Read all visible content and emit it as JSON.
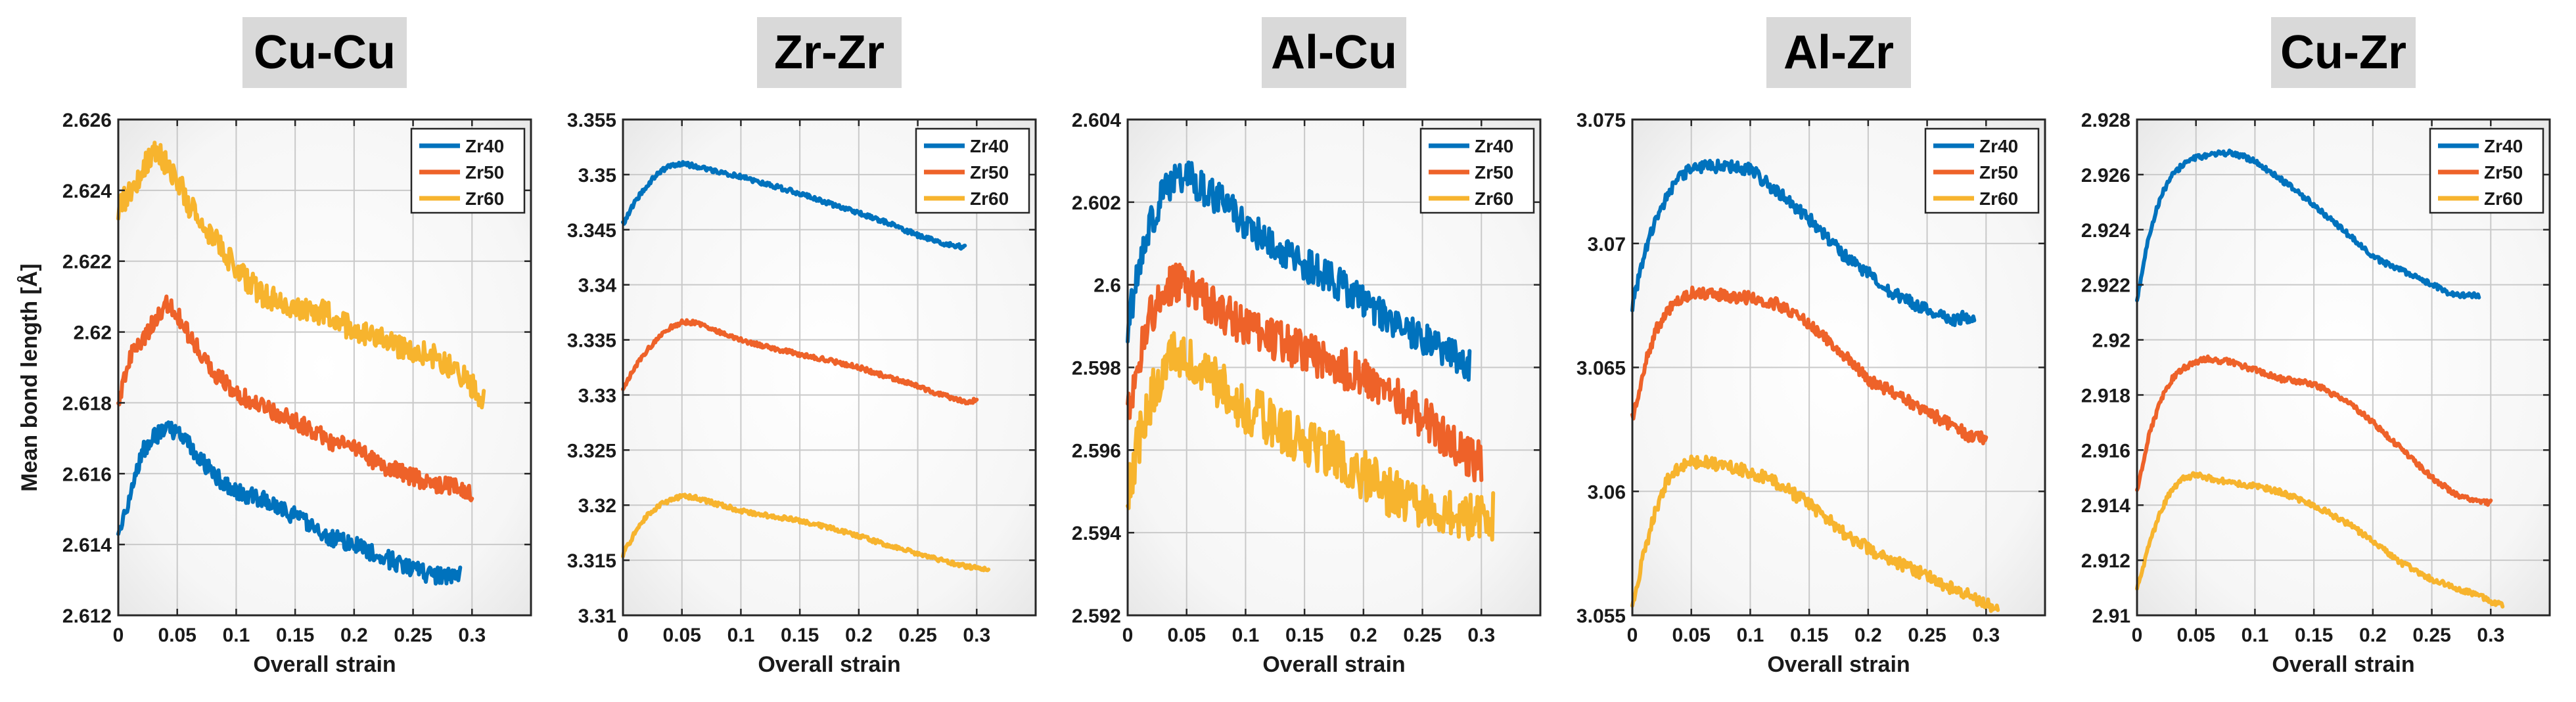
{
  "figure": {
    "ylabel": "Mean bond length  [Å]",
    "xlabel": "Overall strain",
    "legend_location": "top-right",
    "grid": true,
    "colors": {
      "Zr40": "#0072BD",
      "Zr50": "#EE6229",
      "Zr60": "#F7B42E",
      "title_box": "#d9d9d9"
    }
  },
  "chart_data": [
    {
      "type": "line",
      "title": "Cu-Cu",
      "xlabel": "Overall strain",
      "ylabel": "Mean bond length  [Å]",
      "xlim": [
        0,
        0.35
      ],
      "ylim": [
        2.612,
        2.626
      ],
      "xticks": [
        0,
        0.05,
        0.1,
        0.15,
        0.2,
        0.25,
        0.3
      ],
      "xtick_labels": [
        "0",
        "0.05",
        "0.1",
        "0.15",
        "0.2",
        "0.25",
        "0.3"
      ],
      "yticks": [
        2.612,
        2.614,
        2.616,
        2.618,
        2.62,
        2.622,
        2.624,
        2.626
      ],
      "ytick_labels": [
        "2.612",
        "2.614",
        "2.616",
        "2.618",
        "2.62",
        "2.622",
        "2.624",
        "2.626"
      ],
      "series": [
        {
          "name": "Zr40",
          "noise": 0.00025,
          "x": [
            0,
            0.01,
            0.02,
            0.03,
            0.04,
            0.05,
            0.06,
            0.08,
            0.1,
            0.12,
            0.15,
            0.18,
            0.2,
            0.22,
            0.25,
            0.27,
            0.29
          ],
          "y": [
            2.6141,
            2.6155,
            2.6166,
            2.617,
            2.6173,
            2.6172,
            2.6168,
            2.616,
            2.6155,
            2.6153,
            2.6148,
            2.6142,
            2.614,
            2.6137,
            2.6133,
            2.6131,
            2.6132
          ]
        },
        {
          "name": "Zr50",
          "noise": 0.00025,
          "x": [
            0,
            0.01,
            0.02,
            0.03,
            0.04,
            0.05,
            0.06,
            0.08,
            0.1,
            0.12,
            0.15,
            0.18,
            0.2,
            0.22,
            0.25,
            0.27,
            0.29,
            0.3
          ],
          "y": [
            2.618,
            2.6193,
            2.6197,
            2.6203,
            2.6208,
            2.6205,
            2.6199,
            2.6189,
            2.6183,
            2.6179,
            2.6175,
            2.6169,
            2.6167,
            2.6163,
            2.6159,
            2.6157,
            2.6156,
            2.6154
          ]
        },
        {
          "name": "Zr60",
          "noise": 0.00035,
          "x": [
            0,
            0.01,
            0.02,
            0.03,
            0.04,
            0.05,
            0.06,
            0.08,
            0.1,
            0.12,
            0.15,
            0.18,
            0.2,
            0.22,
            0.25,
            0.27,
            0.29,
            0.3,
            0.31
          ],
          "y": [
            2.6235,
            2.624,
            2.6245,
            2.6252,
            2.6248,
            2.6243,
            2.6236,
            2.6227,
            2.6218,
            2.6211,
            2.6207,
            2.6205,
            2.62,
            2.6198,
            2.6195,
            2.6193,
            2.6188,
            2.6185,
            2.6181
          ]
        }
      ]
    },
    {
      "type": "line",
      "title": "Zr-Zr",
      "xlabel": "Overall strain",
      "ylabel": "",
      "xlim": [
        0,
        0.35
      ],
      "ylim": [
        3.31,
        3.355
      ],
      "xticks": [
        0,
        0.05,
        0.1,
        0.15,
        0.2,
        0.25,
        0.3
      ],
      "xtick_labels": [
        "0",
        "0.05",
        "0.1",
        "0.15",
        "0.2",
        "0.25",
        "0.3"
      ],
      "yticks": [
        3.31,
        3.315,
        3.32,
        3.325,
        3.33,
        3.335,
        3.34,
        3.345,
        3.35,
        3.355
      ],
      "ytick_labels": [
        "3.31",
        "3.315",
        "3.32",
        "3.325",
        "3.33",
        "3.335",
        "3.34",
        "3.345",
        "3.35",
        "3.355"
      ],
      "series": [
        {
          "name": "Zr40",
          "noise": 0.0002,
          "x": [
            0,
            0.01,
            0.02,
            0.03,
            0.04,
            0.05,
            0.06,
            0.08,
            0.1,
            0.12,
            0.15,
            0.18,
            0.2,
            0.22,
            0.25,
            0.27,
            0.29
          ],
          "y": [
            3.3455,
            3.3475,
            3.349,
            3.3502,
            3.3508,
            3.351,
            3.3508,
            3.3503,
            3.3498,
            3.3492,
            3.3483,
            3.3472,
            3.3465,
            3.3458,
            3.3445,
            3.3438,
            3.3434
          ]
        },
        {
          "name": "Zr50",
          "noise": 0.0002,
          "x": [
            0,
            0.01,
            0.02,
            0.03,
            0.04,
            0.05,
            0.06,
            0.08,
            0.1,
            0.12,
            0.15,
            0.18,
            0.2,
            0.22,
            0.25,
            0.27,
            0.29,
            0.3
          ],
          "y": [
            3.3305,
            3.3325,
            3.334,
            3.3352,
            3.3361,
            3.3366,
            3.3366,
            3.3358,
            3.335,
            3.3344,
            3.3337,
            3.333,
            3.3325,
            3.3318,
            3.3308,
            3.33,
            3.3294,
            3.3295
          ]
        },
        {
          "name": "Zr60",
          "noise": 0.0002,
          "x": [
            0,
            0.01,
            0.02,
            0.03,
            0.04,
            0.05,
            0.06,
            0.08,
            0.1,
            0.12,
            0.15,
            0.18,
            0.2,
            0.22,
            0.25,
            0.27,
            0.29,
            0.3,
            0.31
          ],
          "y": [
            3.3155,
            3.3175,
            3.319,
            3.3199,
            3.3205,
            3.3208,
            3.3207,
            3.3201,
            3.3195,
            3.3191,
            3.3186,
            3.3178,
            3.3172,
            3.3165,
            3.3156,
            3.315,
            3.3145,
            3.3143,
            3.3142
          ]
        }
      ]
    },
    {
      "type": "line",
      "title": "Al-Cu",
      "xlabel": "Overall strain",
      "ylabel": "",
      "xlim": [
        0,
        0.35
      ],
      "ylim": [
        2.592,
        2.604
      ],
      "xticks": [
        0,
        0.05,
        0.1,
        0.15,
        0.2,
        0.25,
        0.3
      ],
      "xtick_labels": [
        "0",
        "0.05",
        "0.1",
        "0.15",
        "0.2",
        "0.25",
        "0.3"
      ],
      "yticks": [
        2.592,
        2.594,
        2.596,
        2.598,
        2.6,
        2.602,
        2.604
      ],
      "ytick_labels": [
        "2.592",
        "2.594",
        "2.596",
        "2.598",
        "2.6",
        "2.602",
        "2.604"
      ],
      "series": [
        {
          "name": "Zr40",
          "noise": 0.0004,
          "x": [
            0,
            0.01,
            0.02,
            0.03,
            0.04,
            0.05,
            0.06,
            0.08,
            0.1,
            0.12,
            0.15,
            0.18,
            0.2,
            0.22,
            0.25,
            0.27,
            0.29
          ],
          "y": [
            2.599,
            2.6005,
            2.6015,
            2.6022,
            2.6025,
            2.6027,
            2.6024,
            2.602,
            2.6015,
            2.601,
            2.6005,
            2.6,
            2.5996,
            2.5992,
            2.5987,
            2.5984,
            2.598
          ]
        },
        {
          "name": "Zr50",
          "noise": 0.0005,
          "x": [
            0,
            0.01,
            0.02,
            0.03,
            0.04,
            0.05,
            0.06,
            0.08,
            0.1,
            0.12,
            0.15,
            0.18,
            0.2,
            0.22,
            0.25,
            0.27,
            0.29,
            0.3
          ],
          "y": [
            2.597,
            2.5983,
            2.5993,
            2.5998,
            2.6,
            2.6,
            2.5998,
            2.5993,
            2.599,
            2.5987,
            2.5984,
            2.598,
            2.5978,
            2.5974,
            2.5968,
            2.5963,
            2.5958,
            2.5957
          ]
        },
        {
          "name": "Zr60",
          "noise": 0.0006,
          "x": [
            0,
            0.01,
            0.02,
            0.03,
            0.04,
            0.05,
            0.06,
            0.08,
            0.1,
            0.12,
            0.15,
            0.18,
            0.2,
            0.22,
            0.25,
            0.27,
            0.29,
            0.3,
            0.31
          ],
          "y": [
            2.595,
            2.5963,
            2.5973,
            2.598,
            2.5983,
            2.5983,
            2.598,
            2.5975,
            2.597,
            2.5967,
            2.5962,
            2.5958,
            2.5954,
            2.595,
            2.5946,
            2.5944,
            2.5944,
            2.5945,
            2.5944
          ]
        }
      ]
    },
    {
      "type": "line",
      "title": "Al-Zr",
      "xlabel": "Overall strain",
      "ylabel": "",
      "xlim": [
        0,
        0.35
      ],
      "ylim": [
        3.055,
        3.075
      ],
      "xticks": [
        0,
        0.05,
        0.1,
        0.15,
        0.2,
        0.25,
        0.3
      ],
      "xtick_labels": [
        "0",
        "0.05",
        "0.1",
        "0.15",
        "0.2",
        "0.25",
        "0.3"
      ],
      "yticks": [
        3.055,
        3.06,
        3.065,
        3.07,
        3.075
      ],
      "ytick_labels": [
        "3.055",
        "3.06",
        "3.065",
        "3.07",
        "3.075"
      ],
      "series": [
        {
          "name": "Zr40",
          "noise": 0.00025,
          "x": [
            0,
            0.01,
            0.02,
            0.03,
            0.04,
            0.05,
            0.06,
            0.08,
            0.1,
            0.12,
            0.15,
            0.18,
            0.2,
            0.22,
            0.25,
            0.27,
            0.29
          ],
          "y": [
            3.0675,
            3.0695,
            3.071,
            3.072,
            3.0727,
            3.073,
            3.0731,
            3.0731,
            3.073,
            3.0722,
            3.071,
            3.0695,
            3.0688,
            3.068,
            3.0673,
            3.0669,
            3.0671
          ]
        },
        {
          "name": "Zr50",
          "noise": 0.00025,
          "x": [
            0,
            0.01,
            0.02,
            0.03,
            0.04,
            0.05,
            0.06,
            0.08,
            0.1,
            0.12,
            0.15,
            0.18,
            0.2,
            0.22,
            0.25,
            0.27,
            0.29,
            0.3
          ],
          "y": [
            3.063,
            3.065,
            3.0665,
            3.0673,
            3.0678,
            3.068,
            3.068,
            3.0679,
            3.0678,
            3.0676,
            3.0668,
            3.0655,
            3.0645,
            3.064,
            3.0632,
            3.0627,
            3.0621,
            3.0622
          ]
        },
        {
          "name": "Zr60",
          "noise": 0.00025,
          "x": [
            0,
            0.01,
            0.02,
            0.03,
            0.04,
            0.05,
            0.06,
            0.08,
            0.1,
            0.12,
            0.15,
            0.18,
            0.2,
            0.22,
            0.25,
            0.27,
            0.29,
            0.3,
            0.31
          ],
          "y": [
            3.0555,
            3.0575,
            3.0593,
            3.0605,
            3.061,
            3.0612,
            3.0612,
            3.061,
            3.0608,
            3.0604,
            3.0595,
            3.0583,
            3.0577,
            3.0572,
            3.0566,
            3.0561,
            3.0557,
            3.0555,
            3.0552
          ]
        }
      ]
    },
    {
      "type": "line",
      "title": "Cu-Zr",
      "xlabel": "Overall strain",
      "ylabel": "",
      "xlim": [
        0,
        0.35
      ],
      "ylim": [
        2.91,
        2.928
      ],
      "xticks": [
        0,
        0.05,
        0.1,
        0.15,
        0.2,
        0.25,
        0.3
      ],
      "xtick_labels": [
        "0",
        "0.05",
        "0.1",
        "0.15",
        "0.2",
        "0.25",
        "0.3"
      ],
      "yticks": [
        2.91,
        2.912,
        2.914,
        2.916,
        2.918,
        2.92,
        2.922,
        2.924,
        2.926,
        2.928
      ],
      "ytick_labels": [
        "2.91",
        "2.912",
        "2.914",
        "2.916",
        "2.918",
        "2.92",
        "2.922",
        "2.924",
        "2.926",
        "2.928"
      ],
      "series": [
        {
          "name": "Zr40",
          "noise": 0.0001,
          "x": [
            0,
            0.01,
            0.02,
            0.03,
            0.04,
            0.05,
            0.06,
            0.08,
            0.1,
            0.12,
            0.15,
            0.18,
            0.2,
            0.22,
            0.25,
            0.27,
            0.29
          ],
          "y": [
            2.9215,
            2.9238,
            2.9252,
            2.926,
            2.9264,
            2.9266,
            2.9267,
            2.9268,
            2.9265,
            2.9259,
            2.9249,
            2.9238,
            2.923,
            2.9226,
            2.922,
            2.9216,
            2.9216
          ]
        },
        {
          "name": "Zr50",
          "noise": 0.0001,
          "x": [
            0,
            0.01,
            0.02,
            0.03,
            0.04,
            0.05,
            0.06,
            0.08,
            0.1,
            0.12,
            0.15,
            0.18,
            0.2,
            0.22,
            0.25,
            0.27,
            0.29,
            0.3
          ],
          "y": [
            2.9145,
            2.9165,
            2.9178,
            2.9186,
            2.919,
            2.9192,
            2.9193,
            2.9192,
            2.9189,
            2.9186,
            2.9184,
            2.9177,
            2.917,
            2.9162,
            2.915,
            2.9144,
            2.9141,
            2.9141
          ]
        },
        {
          "name": "Zr60",
          "noise": 0.0001,
          "x": [
            0,
            0.01,
            0.02,
            0.03,
            0.04,
            0.05,
            0.06,
            0.08,
            0.1,
            0.12,
            0.15,
            0.18,
            0.2,
            0.22,
            0.25,
            0.27,
            0.29,
            0.3,
            0.31
          ],
          "y": [
            2.911,
            2.9125,
            2.9138,
            2.9146,
            2.915,
            2.9151,
            2.915,
            2.9148,
            2.9147,
            2.9145,
            2.914,
            2.9133,
            2.9127,
            2.912,
            2.9113,
            2.911,
            2.9107,
            2.9105,
            2.9104
          ]
        }
      ]
    }
  ]
}
